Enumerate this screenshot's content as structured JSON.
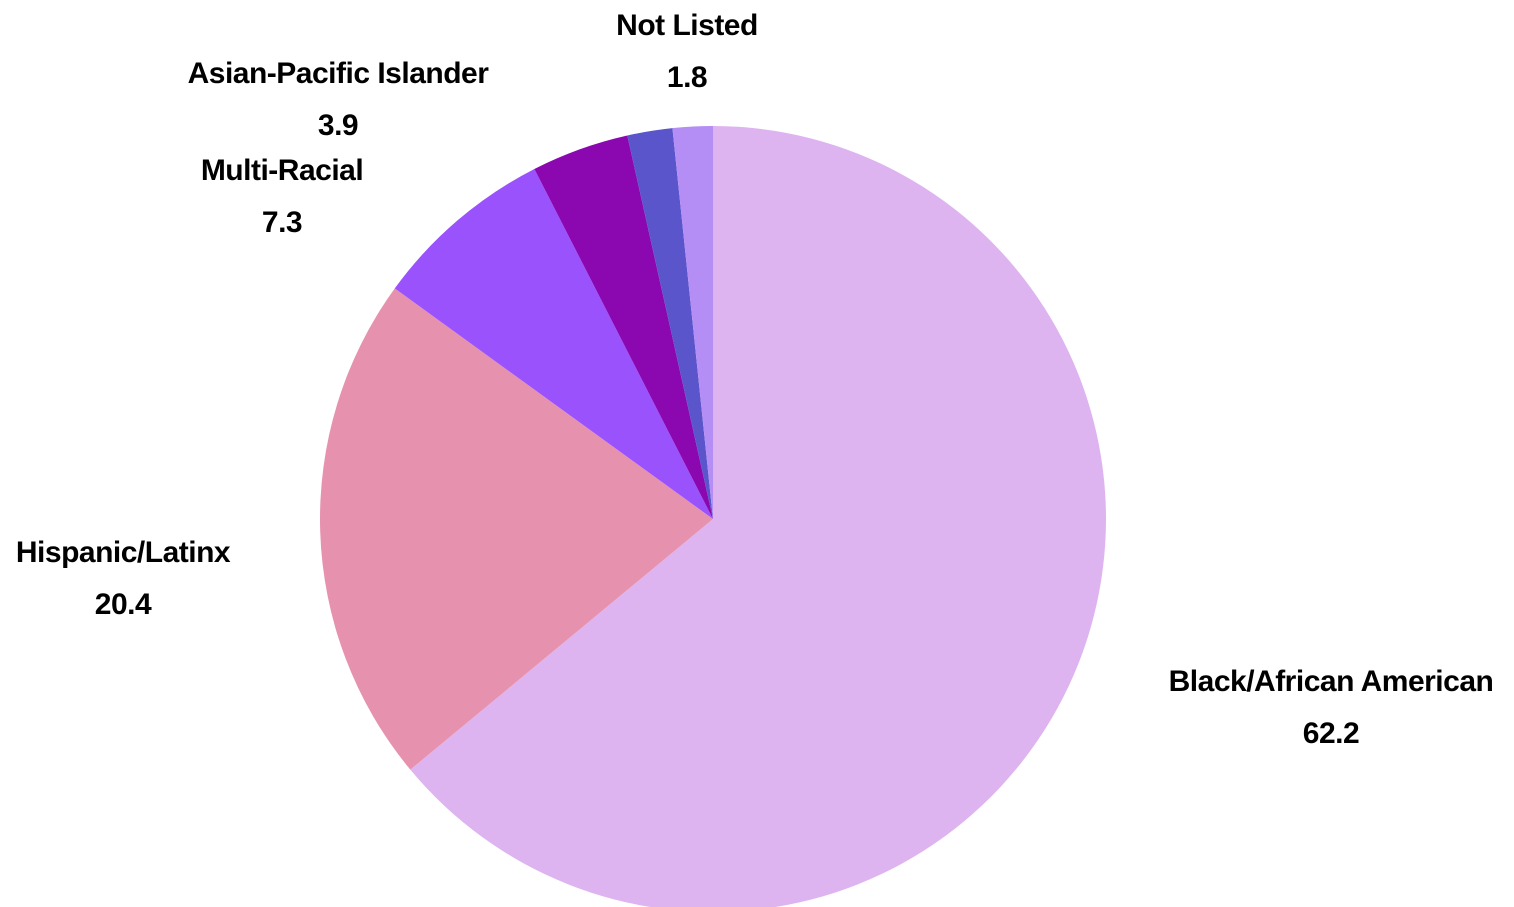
{
  "chart_data": {
    "type": "pie",
    "start_angle_deg": 0,
    "direction": "clockwise",
    "legend": "none",
    "slices": [
      {
        "label": "Black/African American",
        "value": 62.2,
        "value_label": "62.2",
        "color": "#deb4f0"
      },
      {
        "label": "Hispanic/Latinx",
        "value": 20.4,
        "value_label": "20.4",
        "color": "#e692ae"
      },
      {
        "label": "Multi-Racial",
        "value": 7.3,
        "value_label": "7.3",
        "color": "#9a52fd"
      },
      {
        "label": "Asian-Pacific Islander",
        "value": 3.9,
        "value_label": "3.9",
        "color": "#8b08b0"
      },
      {
        "label": "Not Listed",
        "value": 1.8,
        "value_label": "1.8",
        "color": "#5b55cb"
      },
      {
        "label": "",
        "value": 1.6,
        "value_label": "",
        "color": "#b48ef4"
      }
    ]
  }
}
